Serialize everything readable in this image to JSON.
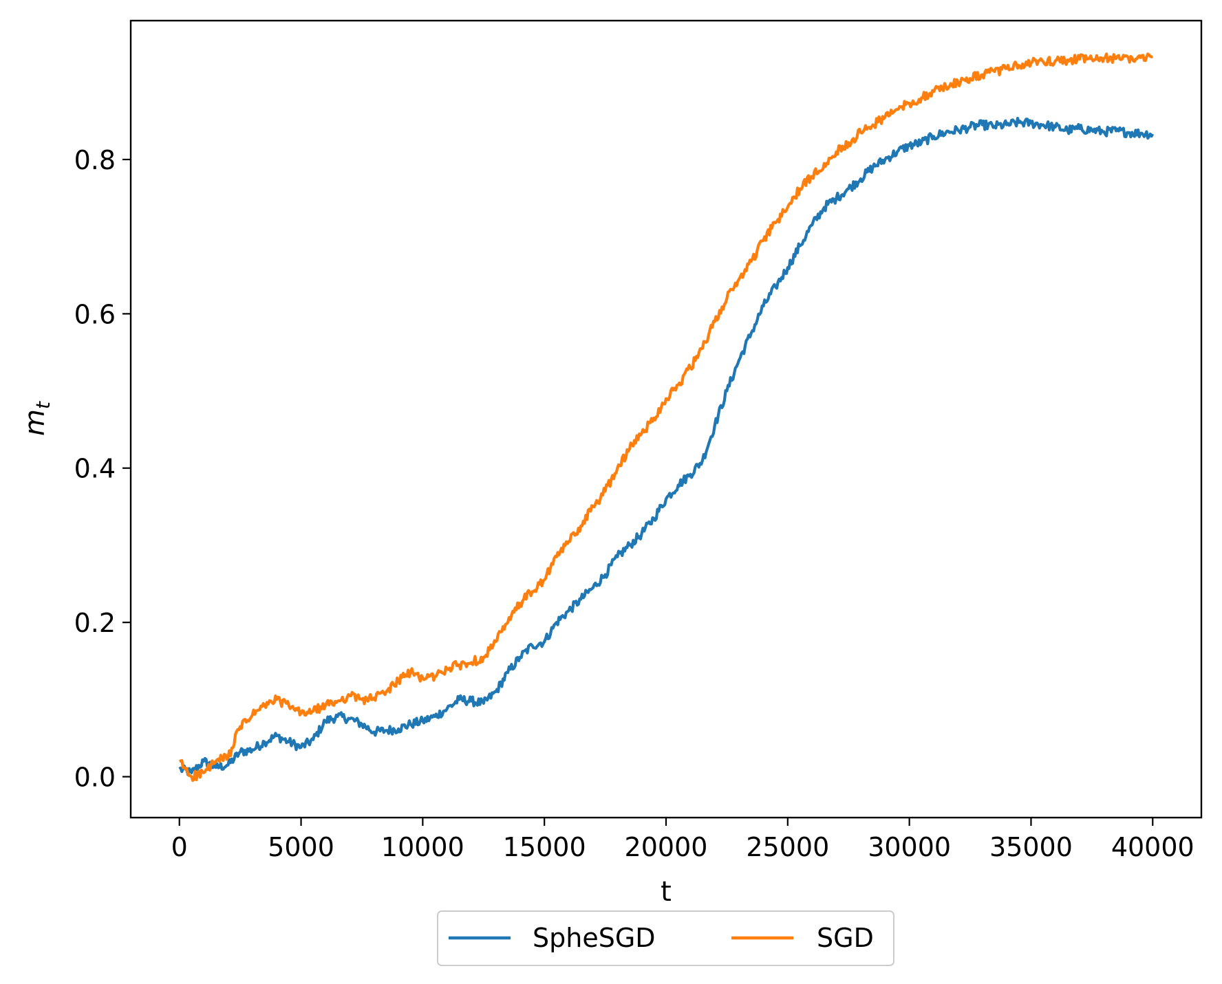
{
  "chart_data": {
    "type": "line",
    "title": "",
    "xlabel": "t",
    "ylabel": "m",
    "ylabel_subscript": "t",
    "xlim": [
      -2000,
      42000
    ],
    "ylim": [
      -0.053,
      0.98
    ],
    "x_ticks": [
      0,
      5000,
      10000,
      15000,
      20000,
      25000,
      30000,
      35000,
      40000
    ],
    "x_tick_labels": [
      "0",
      "5000",
      "10000",
      "15000",
      "20000",
      "25000",
      "30000",
      "35000",
      "40000"
    ],
    "y_ticks": [
      0.0,
      0.2,
      0.4,
      0.6,
      0.8
    ],
    "y_tick_labels": [
      "0.0",
      "0.2",
      "0.4",
      "0.6",
      "0.8"
    ],
    "grid": false,
    "legend": {
      "placement": "bottom-outside",
      "columns": 2
    },
    "series": [
      {
        "name": "SpheSGD",
        "color": "#1f77b4",
        "x": [
          0,
          500,
          1000,
          1500,
          2000,
          2500,
          3000,
          3500,
          4000,
          4500,
          5000,
          5500,
          6000,
          6500,
          7000,
          7500,
          8000,
          8500,
          9000,
          9500,
          10000,
          10500,
          11000,
          11500,
          12000,
          12500,
          13000,
          13500,
          14000,
          14500,
          15000,
          15500,
          16000,
          16500,
          17000,
          17500,
          18000,
          18500,
          19000,
          19500,
          20000,
          20500,
          21000,
          21500,
          22000,
          22500,
          23000,
          23500,
          24000,
          24500,
          25000,
          25500,
          26000,
          26500,
          27000,
          27500,
          28000,
          28500,
          29000,
          29500,
          30000,
          30500,
          31000,
          31500,
          32000,
          32500,
          33000,
          33500,
          34000,
          34500,
          35000,
          35500,
          36000,
          36500,
          37000,
          37500,
          38000,
          38500,
          39000,
          39500,
          40000
        ],
        "values": [
          0.01,
          0.005,
          0.02,
          0.012,
          0.015,
          0.032,
          0.035,
          0.045,
          0.053,
          0.045,
          0.038,
          0.048,
          0.072,
          0.078,
          0.075,
          0.068,
          0.058,
          0.06,
          0.062,
          0.068,
          0.072,
          0.078,
          0.088,
          0.1,
          0.098,
          0.095,
          0.11,
          0.135,
          0.155,
          0.17,
          0.175,
          0.2,
          0.215,
          0.23,
          0.245,
          0.262,
          0.285,
          0.3,
          0.315,
          0.335,
          0.36,
          0.378,
          0.392,
          0.41,
          0.455,
          0.5,
          0.54,
          0.575,
          0.61,
          0.635,
          0.66,
          0.688,
          0.715,
          0.738,
          0.75,
          0.762,
          0.775,
          0.79,
          0.8,
          0.81,
          0.818,
          0.822,
          0.83,
          0.835,
          0.838,
          0.842,
          0.845,
          0.843,
          0.845,
          0.848,
          0.847,
          0.845,
          0.842,
          0.838,
          0.84,
          0.838,
          0.836,
          0.837,
          0.835,
          0.834,
          0.833
        ]
      },
      {
        "name": "SGD",
        "color": "#ff7f0e",
        "x": [
          0,
          500,
          1000,
          1500,
          2000,
          2500,
          3000,
          3500,
          4000,
          4500,
          5000,
          5500,
          6000,
          6500,
          7000,
          7500,
          8000,
          8500,
          9000,
          9500,
          10000,
          10500,
          11000,
          11500,
          12000,
          12500,
          13000,
          13500,
          14000,
          14500,
          15000,
          15500,
          16000,
          16500,
          17000,
          17500,
          18000,
          18500,
          19000,
          19500,
          20000,
          20500,
          21000,
          21500,
          22000,
          22500,
          23000,
          23500,
          24000,
          24500,
          25000,
          25500,
          26000,
          26500,
          27000,
          27500,
          28000,
          28500,
          29000,
          29500,
          30000,
          30500,
          31000,
          31500,
          32000,
          32500,
          33000,
          33500,
          34000,
          34500,
          35000,
          35500,
          36000,
          36500,
          37000,
          37500,
          38000,
          38500,
          39000,
          39500,
          40000
        ],
        "values": [
          0.02,
          0.0,
          0.005,
          0.02,
          0.025,
          0.065,
          0.08,
          0.092,
          0.1,
          0.092,
          0.082,
          0.085,
          0.092,
          0.098,
          0.105,
          0.1,
          0.102,
          0.11,
          0.125,
          0.135,
          0.128,
          0.13,
          0.14,
          0.145,
          0.148,
          0.155,
          0.175,
          0.2,
          0.225,
          0.24,
          0.255,
          0.285,
          0.305,
          0.325,
          0.35,
          0.37,
          0.4,
          0.425,
          0.445,
          0.465,
          0.49,
          0.508,
          0.53,
          0.555,
          0.59,
          0.62,
          0.645,
          0.668,
          0.695,
          0.718,
          0.738,
          0.762,
          0.778,
          0.795,
          0.81,
          0.822,
          0.835,
          0.845,
          0.855,
          0.865,
          0.873,
          0.88,
          0.888,
          0.895,
          0.9,
          0.905,
          0.91,
          0.914,
          0.918,
          0.922,
          0.925,
          0.927,
          0.928,
          0.929,
          0.93,
          0.93,
          0.931,
          0.931,
          0.932,
          0.932,
          0.933
        ]
      }
    ]
  }
}
